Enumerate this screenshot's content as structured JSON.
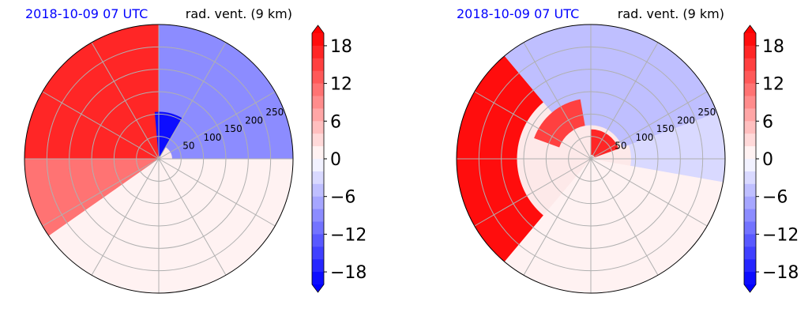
{
  "colors": {
    "title_left": "#0000ff",
    "title_right": "#000000",
    "grid": "#b0b0b0",
    "outline": "#000000",
    "positive_max": "#ff0000",
    "negative_max": "#0000ff",
    "neutral": "#ffffff"
  },
  "chart_data": [
    {
      "type": "heatmap",
      "projection": "polar",
      "title_left": "2018-10-09 07 UTC",
      "title_right": "rad. vent. (9 km)",
      "range_rings": [
        50,
        100,
        150,
        200,
        250
      ],
      "range_tick_labels": [
        "50",
        "100",
        "150",
        "200",
        "250"
      ],
      "azimuth_spokes_deg": [
        0,
        30,
        60,
        90,
        120,
        150,
        180,
        210,
        240,
        270,
        300,
        330
      ],
      "grid": true,
      "colorbar": {
        "ticks": [
          18,
          12,
          6,
          0,
          -6,
          -12,
          -18
        ],
        "tick_labels": [
          "18",
          "12",
          "6",
          "0",
          "−6",
          "−12",
          "−18"
        ],
        "vmin": -20,
        "vmax": 20,
        "levels": 20,
        "extend": "both",
        "cmap": "bwr"
      },
      "field_regions": [
        {
          "sector_deg": [
            90,
            180
          ],
          "radius": [
            0,
            1
          ],
          "value": 16,
          "note": "strong positive NW quadrant"
        },
        {
          "sector_deg": [
            180,
            215
          ],
          "radius": [
            0,
            1
          ],
          "value": 11
        },
        {
          "sector_deg": [
            0,
            90
          ],
          "radius": [
            0.1,
            1
          ],
          "value": -9,
          "note": "negative NE quadrant"
        },
        {
          "sector_deg": [
            60,
            95
          ],
          "radius": [
            0.02,
            0.35
          ],
          "value": -20,
          "note": "strong negative near radar"
        },
        {
          "sector_deg": [
            215,
            360
          ],
          "radius": [
            0,
            1
          ],
          "value": 1.5
        }
      ]
    },
    {
      "type": "heatmap",
      "projection": "polar",
      "title_left": "2018-10-09 07 UTC",
      "title_right": "rad. vent. (9 km)",
      "range_rings": [
        50,
        100,
        150,
        200,
        250
      ],
      "range_tick_labels": [
        "50",
        "100",
        "150",
        "200",
        "250"
      ],
      "azimuth_spokes_deg": [
        0,
        30,
        60,
        90,
        120,
        150,
        180,
        210,
        240,
        270,
        300,
        330
      ],
      "grid": true,
      "colorbar": {
        "ticks": [
          18,
          12,
          6,
          0,
          -6,
          -12,
          -18
        ],
        "tick_labels": [
          "18",
          "12",
          "6",
          "0",
          "−6",
          "−12",
          "−18"
        ],
        "vmin": -20,
        "vmax": 20,
        "levels": 20,
        "extend": "both",
        "cmap": "bwr"
      },
      "field_regions": [
        {
          "sector_deg": [
            130,
            230
          ],
          "radius": [
            0.55,
            1
          ],
          "value": 19,
          "note": "strong positive western band"
        },
        {
          "sector_deg": [
            20,
            130
          ],
          "radius": [
            0.25,
            1
          ],
          "value": -6,
          "note": "negative north/northeast"
        },
        {
          "sector_deg": [
            20,
            90
          ],
          "radius": [
            0.03,
            0.22
          ],
          "value": 17,
          "note": "positive core near radar"
        },
        {
          "sector_deg": [
            100,
            160
          ],
          "radius": [
            0.25,
            0.45
          ],
          "value": 14
        },
        {
          "sector_deg": [
            -10,
            20
          ],
          "radius": [
            0.3,
            1
          ],
          "value": -4
        },
        {
          "sector_deg": [
            230,
            350
          ],
          "radius": [
            0,
            1
          ],
          "value": 1
        }
      ]
    }
  ]
}
